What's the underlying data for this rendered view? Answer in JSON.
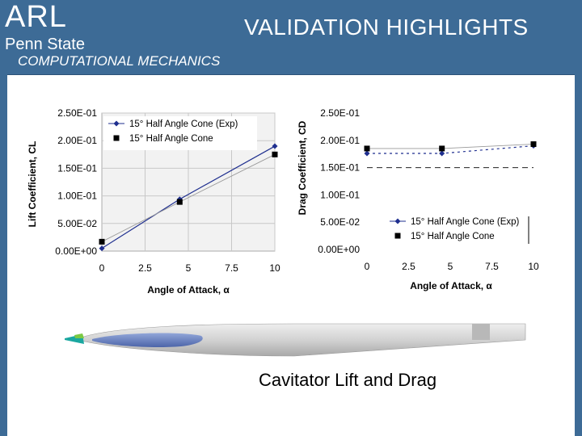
{
  "header": {
    "logo_text": "ARL",
    "org_text": "Penn State",
    "division_text": "COMPUTATIONAL MECHANICS",
    "title": "VALIDATION HIGHLIGHTS"
  },
  "colors": {
    "header_bg": "#3d6b96",
    "exp_series": "#1f2f8f",
    "computed_series": "#000000",
    "torpedo_body": "#cfcfcf",
    "cavitator": "#1aa7a0",
    "stripe": "#5b74b8"
  },
  "chart_data": [
    {
      "type": "line",
      "id": "lift",
      "title": "",
      "xlabel": "Angle of Attack, α",
      "ylabel": "Lift Coefficient, CL",
      "xlim": [
        0,
        10
      ],
      "ylim": [
        0,
        0.25
      ],
      "x_ticks": [
        "0",
        "2.5",
        "5",
        "7.5",
        "10"
      ],
      "y_ticks": [
        "0.00E+00",
        "5.00E-02",
        "1.00E-01",
        "1.50E-01",
        "2.00E-01",
        "2.50E-01"
      ],
      "grid": true,
      "legend": "top-left",
      "series": [
        {
          "name": "15° Half Angle Cone (Exp)",
          "marker": "diamond",
          "x": [
            0,
            4.5,
            10
          ],
          "values": [
            0.005,
            0.094,
            0.19
          ]
        },
        {
          "name": "15° Half Angle Cone",
          "marker": "square",
          "x": [
            0,
            4.5,
            10
          ],
          "values": [
            0.017,
            0.089,
            0.175
          ]
        }
      ]
    },
    {
      "type": "line",
      "id": "drag",
      "title": "",
      "xlabel": "Angle of Attack, α",
      "ylabel": "Drag Coefficient, CD",
      "xlim": [
        0,
        10
      ],
      "ylim": [
        0,
        0.25
      ],
      "x_ticks": [
        "0",
        "2.5",
        "5",
        "7.5",
        "10"
      ],
      "y_ticks": [
        "0.00E+00",
        "5.00E-02",
        "1.00E-01",
        "1.50E-01",
        "2.00E-01",
        "2.50E-01"
      ],
      "grid": false,
      "legend": "bottom-right",
      "series": [
        {
          "name": "15° Half Angle Cone (Exp)",
          "marker": "diamond",
          "x": [
            0,
            4.5,
            10
          ],
          "values": [
            0.176,
            0.176,
            0.19
          ]
        },
        {
          "name": "15° Half Angle Cone",
          "marker": "square",
          "x": [
            0,
            4.5,
            10
          ],
          "values": [
            0.185,
            0.185,
            0.193
          ]
        },
        {
          "name": "",
          "marker": "none",
          "dashed": true,
          "x": [
            0,
            10
          ],
          "values": [
            0.15,
            0.15
          ]
        }
      ]
    }
  ],
  "caption": "Cavitator Lift and Drag"
}
